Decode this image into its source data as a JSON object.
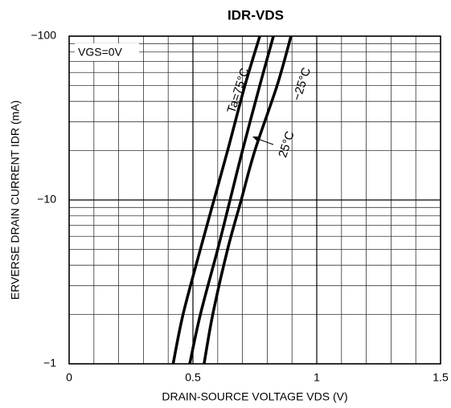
{
  "chart_data": {
    "type": "line",
    "title": "IDR-VDS",
    "x_label": "DRAIN-SOURCE VOLTAGE VDS (V)",
    "y_label": "ERVERSE DRAIN CURRENT IDR (mA)",
    "annotation": "VGS=0V",
    "xlim": [
      0,
      1.5
    ],
    "xticks": [
      0,
      0.5,
      1,
      1.5
    ],
    "ylim": [
      -1,
      -100
    ],
    "y_log": true,
    "yticks": [
      {
        "value": -1,
        "label": "−1"
      },
      {
        "value": -10,
        "label": "−10"
      },
      {
        "value": -100,
        "label": "−100"
      }
    ],
    "grid": true,
    "series": [
      {
        "name": "Ta=75°C",
        "color": "#000000",
        "x": [
          0.42,
          0.46,
          0.53,
          0.585,
          0.64,
          0.71,
          0.77
        ],
        "values": [
          -1,
          -2,
          -5,
          -10,
          -20,
          -50,
          -100
        ]
      },
      {
        "name": "25°C",
        "color": "#000000",
        "x": [
          0.487,
          0.53,
          0.6,
          0.65,
          0.7,
          0.77,
          0.825
        ],
        "values": [
          -1,
          -2,
          -5,
          -10,
          -20,
          -50,
          -100
        ]
      },
      {
        "name": "−25°C",
        "color": "#000000",
        "x": [
          0.545,
          0.58,
          0.64,
          0.695,
          0.75,
          0.84,
          0.896
        ],
        "values": [
          -1,
          -2,
          -5,
          -10,
          -20,
          -50,
          -100
        ]
      }
    ]
  }
}
